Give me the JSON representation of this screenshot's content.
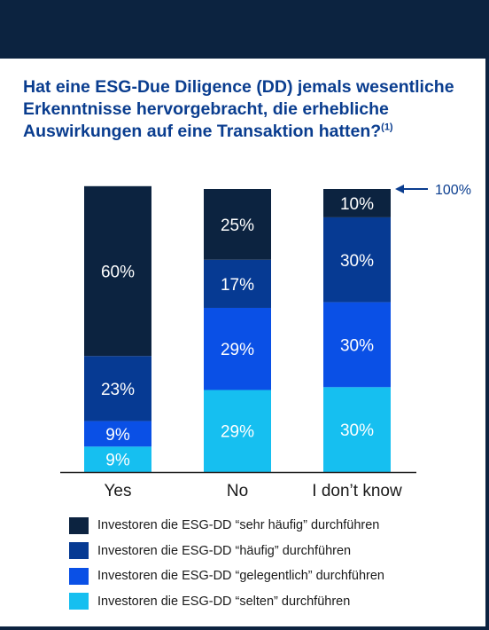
{
  "chart_data": {
    "type": "bar",
    "stacked": true,
    "title_text": "Hat eine ESG-Due Diligence (DD) jemals wesentliche Erkenntnisse hervorgebracht, die erhebliche Auswirkungen auf eine Transaktion hatten?",
    "title_sup": "(1)",
    "categories": [
      "Yes",
      "No",
      "I don’t know"
    ],
    "series": [
      {
        "name": "Investoren die ESG-DD “selten” durchführen",
        "color": "#16bff0",
        "values": [
          9,
          29,
          30
        ],
        "labels": [
          "9%",
          "29%",
          "30%"
        ]
      },
      {
        "name": "Investoren die ESG-DD “gelegentlich” durchführen",
        "color": "#0a50e6",
        "values": [
          9,
          29,
          30
        ],
        "labels": [
          "9%",
          "29%",
          "30%"
        ]
      },
      {
        "name": "Investoren die ESG-DD “häufig” durchführen",
        "color": "#063a93",
        "values": [
          23,
          17,
          30
        ],
        "labels": [
          "23%",
          "17%",
          "30%"
        ]
      },
      {
        "name": "Investoren die ESG-DD “sehr häufig” durchführen",
        "color": "#0c2340",
        "values": [
          60,
          25,
          10
        ],
        "labels": [
          "60%",
          "25%",
          "10%"
        ]
      }
    ],
    "ylim": [
      0,
      100
    ],
    "reference_label": "100%",
    "legend_order": [
      3,
      2,
      1,
      0
    ],
    "legend_placement": "bottom"
  }
}
